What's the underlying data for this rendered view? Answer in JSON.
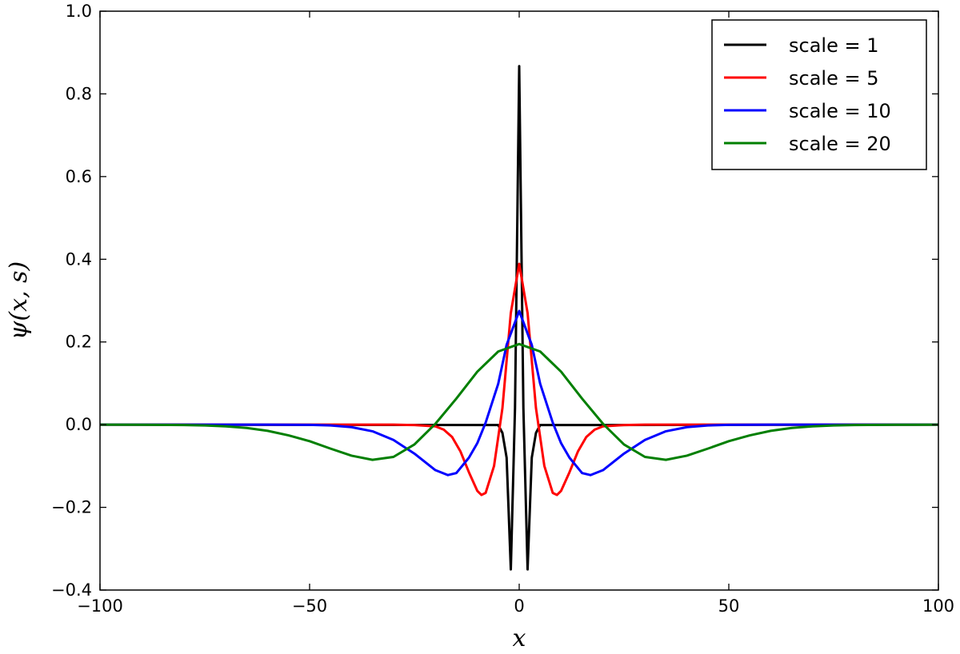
{
  "chart_data": {
    "type": "line",
    "title": "",
    "xlabel": "x",
    "ylabel": "ψ(x, s)",
    "xlim": [
      -100,
      100
    ],
    "ylim": [
      -0.4,
      1.0
    ],
    "xticks": [
      -100,
      -50,
      0,
      50,
      100
    ],
    "xtick_labels": [
      "−100",
      "−50",
      "0",
      "50",
      "100"
    ],
    "yticks": [
      -0.4,
      -0.2,
      0.0,
      0.2,
      0.4,
      0.6,
      0.8,
      1.0
    ],
    "ytick_labels": [
      "−0.4",
      "−0.2",
      "0.0",
      "0.2",
      "0.4",
      "0.6",
      "0.8",
      "1.0"
    ],
    "grid": false,
    "legend_position": "top-right",
    "series": [
      {
        "name": "scale = 1",
        "color": "#000000",
        "x": [
          -100,
          -5,
          -4,
          -3,
          -2,
          -1,
          0,
          1,
          2,
          3,
          4,
          5,
          100
        ],
        "y": [
          0.0,
          -0.001,
          -0.02,
          -0.08,
          -0.35,
          0.04,
          0.867,
          0.04,
          -0.35,
          -0.08,
          -0.02,
          -0.001,
          0.0
        ]
      },
      {
        "name": "scale = 5",
        "color": "#ff0000",
        "x": [
          -100,
          -30,
          -25,
          -20,
          -18,
          -16,
          -14,
          -12,
          -10,
          -9,
          -8,
          -6,
          -4,
          -2,
          0,
          2,
          4,
          6,
          8,
          9,
          10,
          12,
          14,
          16,
          18,
          20,
          25,
          30,
          100
        ],
        "y": [
          0.0,
          0.0,
          -0.001,
          -0.004,
          -0.012,
          -0.03,
          -0.065,
          -0.115,
          -0.16,
          -0.17,
          -0.165,
          -0.1,
          0.04,
          0.27,
          0.389,
          0.27,
          0.04,
          -0.1,
          -0.165,
          -0.17,
          -0.16,
          -0.115,
          -0.065,
          -0.03,
          -0.012,
          -0.004,
          -0.001,
          0.0,
          0.0
        ]
      },
      {
        "name": "scale = 10",
        "color": "#0000ff",
        "x": [
          -100,
          -60,
          -50,
          -45,
          -40,
          -35,
          -30,
          -25,
          -20,
          -17,
          -15,
          -12,
          -10,
          -8,
          -5,
          -3,
          0,
          3,
          5,
          8,
          10,
          12,
          15,
          17,
          20,
          25,
          30,
          35,
          40,
          45,
          50,
          60,
          100
        ],
        "y": [
          0.0,
          0.0,
          -0.0005,
          -0.002,
          -0.006,
          -0.016,
          -0.037,
          -0.07,
          -0.11,
          -0.122,
          -0.117,
          -0.08,
          -0.045,
          0.005,
          0.099,
          0.193,
          0.275,
          0.193,
          0.099,
          0.005,
          -0.045,
          -0.08,
          -0.117,
          -0.122,
          -0.11,
          -0.07,
          -0.037,
          -0.016,
          -0.006,
          -0.002,
          -0.0005,
          0.0,
          0.0
        ]
      },
      {
        "name": "scale = 20",
        "color": "#007f00",
        "x": [
          -100,
          -90,
          -80,
          -75,
          -70,
          -65,
          -60,
          -55,
          -50,
          -45,
          -40,
          -35,
          -30,
          -25,
          -20,
          -15,
          -10,
          -5,
          0,
          5,
          10,
          15,
          20,
          25,
          30,
          35,
          40,
          45,
          50,
          55,
          60,
          65,
          70,
          75,
          80,
          90,
          100
        ],
        "y": [
          0.0,
          -0.0002,
          -0.001,
          -0.002,
          -0.004,
          -0.008,
          -0.015,
          -0.026,
          -0.04,
          -0.058,
          -0.075,
          -0.085,
          -0.078,
          -0.048,
          0.002,
          0.063,
          0.128,
          0.177,
          0.195,
          0.177,
          0.128,
          0.063,
          0.002,
          -0.048,
          -0.078,
          -0.085,
          -0.075,
          -0.058,
          -0.04,
          -0.026,
          -0.015,
          -0.008,
          -0.004,
          -0.002,
          -0.001,
          -0.0002,
          0.0
        ]
      }
    ]
  }
}
